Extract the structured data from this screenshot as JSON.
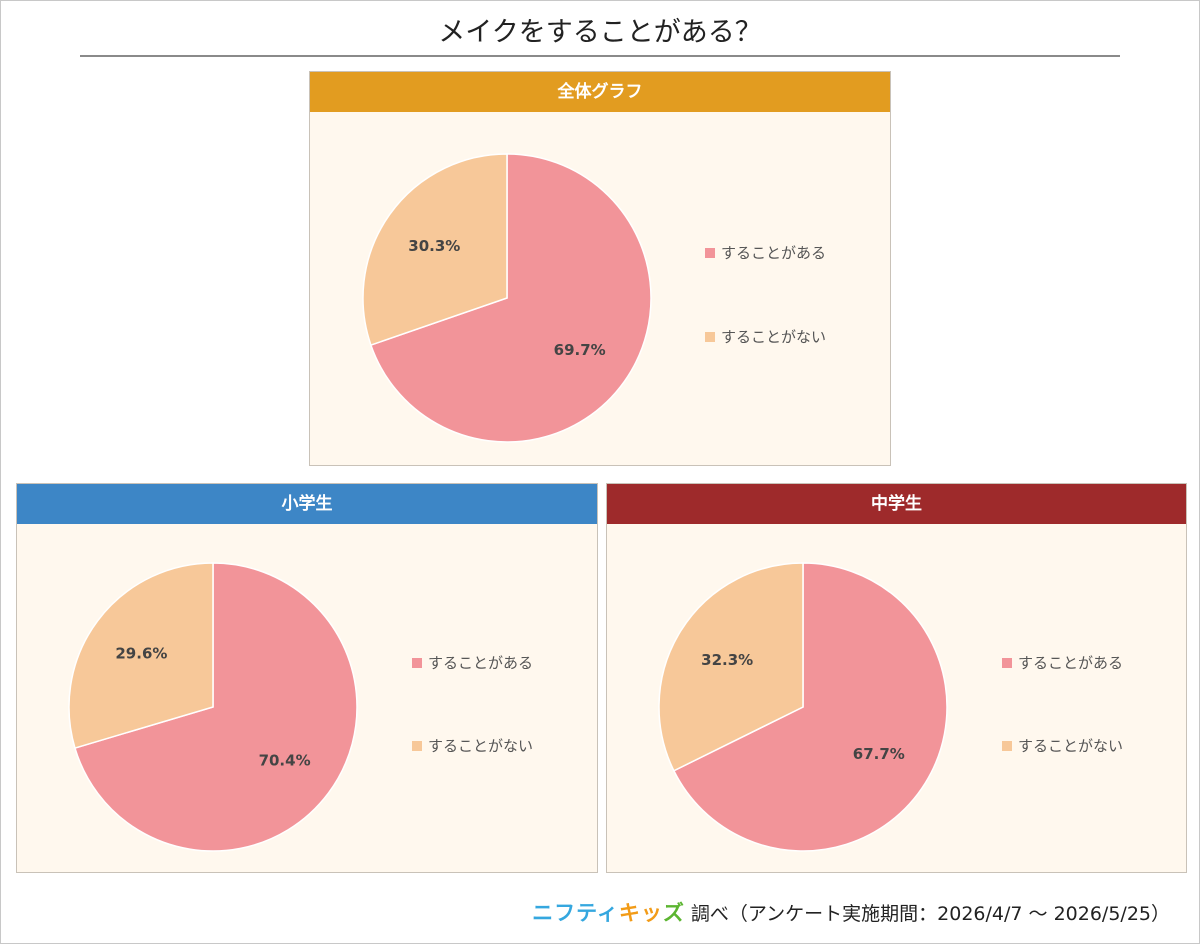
{
  "title": "メイクをすることがある？",
  "colors": {
    "yes": "#f29499",
    "no": "#f7c899",
    "panel_bg": "#fff8ee",
    "header_overall": "#e29c20",
    "header_elementary": "#3d86c6",
    "header_junior": "#9e2a2b"
  },
  "chart_data": [
    {
      "type": "pie",
      "title": "全体グラフ",
      "categories": [
        "することがある",
        "することがない"
      ],
      "values": [
        69.7,
        30.3
      ],
      "labels": [
        "69.7%",
        "30.3%"
      ],
      "legend": "right"
    },
    {
      "type": "pie",
      "title": "小学生",
      "categories": [
        "することがある",
        "することがない"
      ],
      "values": [
        70.4,
        29.6
      ],
      "labels": [
        "70.4%",
        "29.6%"
      ],
      "legend": "right"
    },
    {
      "type": "pie",
      "title": "中学生",
      "categories": [
        "することがある",
        "することがない"
      ],
      "values": [
        67.7,
        32.3
      ],
      "labels": [
        "67.7%",
        "32.3%"
      ],
      "legend": "right"
    }
  ],
  "footer": {
    "logo_part1": "ニフティ",
    "logo_part2": "キッ",
    "logo_part3": "ズ",
    "text": "調べ（アンケート実施期間：2026/4/7 ～ 2026/5/25）"
  }
}
